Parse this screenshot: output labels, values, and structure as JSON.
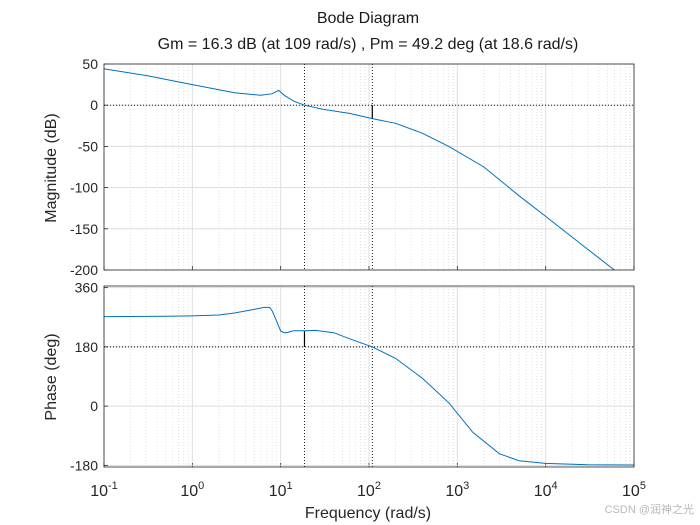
{
  "chart_data": {
    "type": "line",
    "title": "Bode Diagram",
    "subtitle": "Gm = 16.3 dB (at 109 rad/s) ,  Pm = 49.2 deg (at 18.6 rad/s)",
    "xlabel": "Frequency  (rad/s)",
    "xscale": "log",
    "xlim": [
      0.1,
      100000
    ],
    "x_ticks": [
      {
        "base": "10",
        "exp": "-1"
      },
      {
        "base": "10",
        "exp": "0"
      },
      {
        "base": "10",
        "exp": "1"
      },
      {
        "base": "10",
        "exp": "2"
      },
      {
        "base": "10",
        "exp": "3"
      },
      {
        "base": "10",
        "exp": "4"
      },
      {
        "base": "10",
        "exp": "5"
      }
    ],
    "series_color": "#0072BD",
    "gain_crossover_freq": 18.6,
    "phase_crossover_freq": 109,
    "magnitude": {
      "ylabel": "Magnitude (dB)",
      "ylim": [
        -200,
        50
      ],
      "y_ticks": [
        "50",
        "0",
        "-50",
        "-100",
        "-150",
        "-200"
      ],
      "reference_level": 0,
      "margin_marker_top": 0,
      "margin_marker_bottom": -16.3,
      "x": [
        0.1,
        0.3,
        1,
        3,
        6,
        8,
        9.5,
        11,
        14,
        18.6,
        30,
        60,
        109,
        200,
        400,
        800,
        2000,
        5000,
        10000,
        30000,
        60000
      ],
      "values": [
        44,
        36,
        25,
        15,
        12,
        14,
        18,
        12,
        5,
        0,
        -5,
        -10,
        -16.3,
        -22,
        -34,
        -50,
        -75,
        -110,
        -135,
        -175,
        -200
      ]
    },
    "phase": {
      "ylabel": "Phase (deg)",
      "ylim": [
        -185,
        365
      ],
      "y_ticks": [
        "360",
        "180",
        "0",
        "-180"
      ],
      "reference_level": 180,
      "margin_marker_top": 229.2,
      "margin_marker_bottom": 180,
      "x": [
        0.1,
        0.5,
        1,
        2,
        3,
        5,
        6.5,
        7.5,
        8,
        9,
        10,
        11,
        12,
        14,
        18.6,
        25,
        40,
        60,
        109,
        200,
        400,
        800,
        1500,
        3000,
        5000,
        10000,
        30000,
        100000
      ],
      "values": [
        272,
        273,
        274,
        277,
        283,
        294,
        300,
        300,
        290,
        258,
        228,
        223,
        224,
        229,
        229.2,
        230,
        223,
        205,
        180,
        145,
        85,
        10,
        -80,
        -145,
        -166,
        -174,
        -178,
        -179
      ]
    }
  },
  "watermark": "CSDN @润神之光"
}
